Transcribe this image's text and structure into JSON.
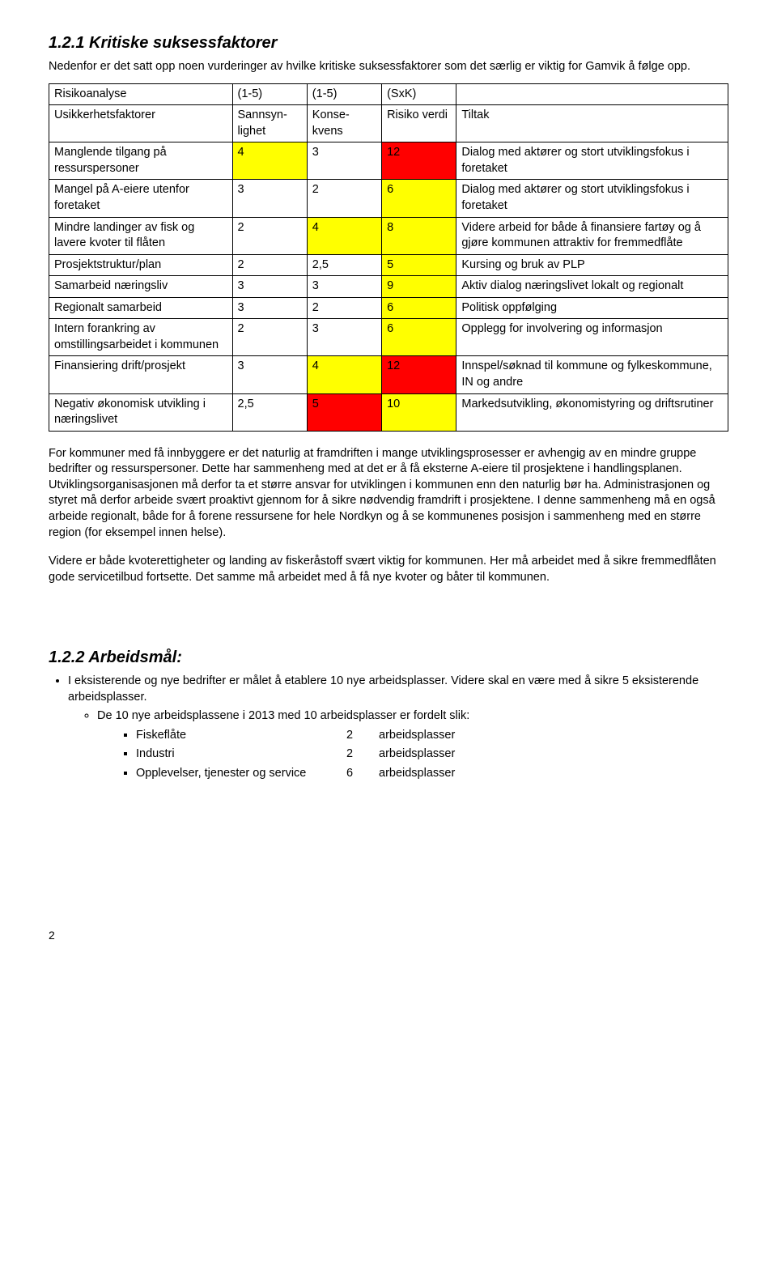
{
  "section1": {
    "number": "1.2.1",
    "title": "Kritiske suksessfaktorer",
    "intro": "Nedenfor er det satt opp noen vurderinger av hvilke kritiske suksessfaktorer som det særlig er viktig for Gamvik å følge opp."
  },
  "table": {
    "header": {
      "c1": "Risikoanalyse",
      "c2": "(1-5)",
      "c3": "(1-5)",
      "c4": "(SxK)",
      "c5": ""
    },
    "subheader": {
      "c1": "Usikkerhetsfaktorer",
      "c2": "Sannsyn-lighet",
      "c3": "Konse-kvens",
      "c4": "Risiko verdi",
      "c5": "Tiltak"
    },
    "rows": [
      {
        "c1": "Manglende tilgang på ressurspersoner",
        "c2": "4",
        "c3": "3",
        "c4": "12",
        "c5": "Dialog med aktører og stort utviklingsfokus i foretaket",
        "c2bg": "yellow",
        "c4bg": "red"
      },
      {
        "c1": "Mangel på A-eiere utenfor foretaket",
        "c2": "3",
        "c3": "2",
        "c4": "6",
        "c5": "Dialog med aktører og stort utviklingsfokus i foretaket",
        "c4bg": "yellow"
      },
      {
        "c1": "Mindre landinger av fisk og lavere kvoter til flåten",
        "c2": "2",
        "c3": "4",
        "c4": "8",
        "c5": "Videre arbeid for både å finansiere fartøy og å gjøre kommunen attraktiv for fremmedflåte",
        "c3bg": "yellow",
        "c4bg": "yellow"
      },
      {
        "c1": "Prosjektstruktur/plan",
        "c2": "2",
        "c3": "2,5",
        "c4": "5",
        "c5": "Kursing og bruk av PLP",
        "c4bg": "yellow"
      },
      {
        "c1": "Samarbeid næringsliv",
        "c2": "3",
        "c3": "3",
        "c4": "9",
        "c5": "Aktiv dialog næringslivet lokalt og regionalt",
        "c4bg": "yellow"
      },
      {
        "c1": "Regionalt samarbeid",
        "c2": "3",
        "c3": "2",
        "c4": "6",
        "c5": "Politisk oppfølging",
        "c4bg": "yellow"
      },
      {
        "c1": "Intern forankring av omstillingsarbeidet i kommunen",
        "c2": "2",
        "c3": "3",
        "c4": "6",
        "c5": "Opplegg for involvering og informasjon",
        "c4bg": "yellow"
      },
      {
        "c1": "Finansiering drift/prosjekt",
        "c2": "3",
        "c3": "4",
        "c4": "12",
        "c5": "Innspel/søknad til kommune og fylkeskommune, IN og andre",
        "c3bg": "yellow",
        "c4bg": "red"
      },
      {
        "c1": "Negativ økonomisk utvikling i næringslivet",
        "c2": "2,5",
        "c3": "5",
        "c4": "10",
        "c5": "Markedsutvikling, økonomistyring og driftsrutiner",
        "c3bg": "red",
        "c4bg": "yellow"
      }
    ],
    "colwidths": {
      "c1": "27%",
      "c2": "11%",
      "c3": "11%",
      "c4": "11%",
      "c5": "40%"
    },
    "colors": {
      "yellow": "#ffff00",
      "red": "#ff0000"
    }
  },
  "body": {
    "p1": "For kommuner med få innbyggere er det naturlig at framdriften i mange utviklingsprosesser er avhengig av en mindre gruppe bedrifter og ressurspersoner. Dette har sammenheng med at det er å få eksterne A-eiere til prosjektene i handlingsplanen. Utviklingsorganisasjonen må derfor ta et større ansvar for utviklingen i kommunen enn den naturlig bør ha. Administrasjonen og styret må derfor arbeide svært proaktivt gjennom for å sikre nødvendig framdrift i prosjektene. I denne sammenheng må en også arbeide regionalt, både for å forene ressursene for hele Nordkyn og å se kommunenes posisjon i sammenheng med en større region (for eksempel innen helse).",
    "p2": "Videre er både kvoterettigheter og landing av fiskeråstoff svært viktig for kommunen. Her må arbeidet med å sikre fremmedflåten gode servicetilbud fortsette. Det samme må arbeidet med å få nye kvoter og båter til kommunen."
  },
  "section2": {
    "number": "1.2.2",
    "title": "Arbeidsmål:",
    "bullet1": "I eksisterende og nye bedrifter er målet å etablere 10 nye arbeidsplasser. Videre skal en være med å sikre 5 eksisterende arbeidsplasser.",
    "sub1": "De 10 nye arbeidsplassene i 2013 med 10 arbeidsplasser er fordelt slik:",
    "jobs": [
      {
        "label": "Fiskeflåte",
        "n": "2",
        "unit": "arbeidsplasser"
      },
      {
        "label": "Industri",
        "n": "2",
        "unit": "arbeidsplasser"
      },
      {
        "label": "Opplevelser, tjenester og service",
        "n": "6",
        "unit": "arbeidsplasser"
      }
    ]
  },
  "footer": {
    "page": "2"
  }
}
